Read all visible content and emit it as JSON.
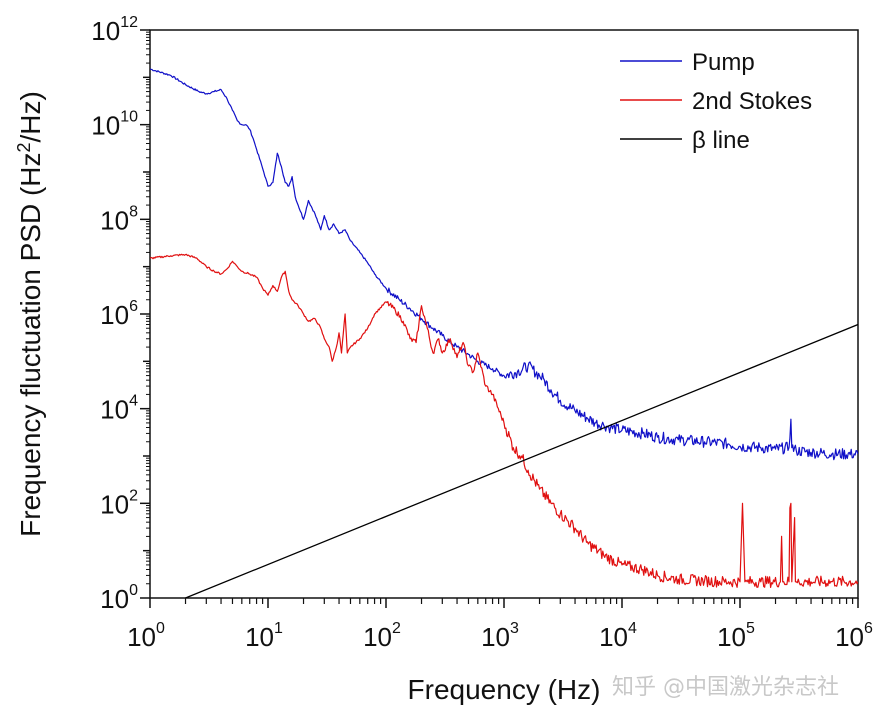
{
  "chart_data": {
    "type": "line",
    "title": "",
    "xlabel": "Frequency (Hz)",
    "ylabel": "Frequency fluctuation PSD (Hz2/Hz)",
    "ylabel_parts": {
      "pre": "Frequency fluctuation PSD (Hz",
      "sup": "2",
      "post": "/Hz)"
    },
    "xscale": "log",
    "yscale": "log",
    "xlim": [
      1,
      1000000
    ],
    "ylim": [
      1,
      1000000000000
    ],
    "x_ticks": [
      {
        "base": "10",
        "exp": "0",
        "value": 1
      },
      {
        "base": "10",
        "exp": "1",
        "value": 10
      },
      {
        "base": "10",
        "exp": "2",
        "value": 100
      },
      {
        "base": "10",
        "exp": "3",
        "value": 1000
      },
      {
        "base": "10",
        "exp": "4",
        "value": 10000
      },
      {
        "base": "10",
        "exp": "5",
        "value": 100000
      },
      {
        "base": "10",
        "exp": "6",
        "value": 1000000
      }
    ],
    "y_ticks": [
      {
        "base": "10",
        "exp": "0",
        "value": 1
      },
      {
        "base": "10",
        "exp": "2",
        "value": 100
      },
      {
        "base": "10",
        "exp": "4",
        "value": 10000
      },
      {
        "base": "10",
        "exp": "6",
        "value": 1000000
      },
      {
        "base": "10",
        "exp": "8",
        "value": 100000000
      },
      {
        "base": "10",
        "exp": "10",
        "value": 10000000000
      },
      {
        "base": "10",
        "exp": "12",
        "value": 1000000000000
      }
    ],
    "grid": false,
    "legend_position": "top-right",
    "series": [
      {
        "name": "Pump",
        "color": "#1010c8",
        "x": [
          1,
          1.5,
          2,
          2.6,
          3,
          3.5,
          4,
          4.5,
          5,
          5.5,
          6,
          6.5,
          7,
          7.5,
          8,
          9,
          10,
          11,
          12,
          13,
          14,
          15,
          16,
          17,
          18,
          20,
          22,
          25,
          28,
          30,
          33,
          36,
          40,
          45,
          50,
          60,
          70,
          80,
          100,
          130,
          160,
          200,
          250,
          300,
          400,
          500,
          600,
          800,
          1000,
          1300,
          1600,
          2000,
          2200,
          2500,
          3000,
          4000,
          5000,
          6000,
          7000,
          8000,
          10000,
          15000,
          20000,
          30000,
          50000,
          80000,
          100000,
          150000,
          200000,
          260000,
          270000,
          275000,
          300000,
          400000,
          600000,
          1000000
        ],
        "y": [
          150000000000.0,
          110000000000.0,
          70000000000.0,
          50000000000.0,
          45000000000.0,
          50000000000.0,
          55000000000.0,
          35000000000.0,
          20000000000.0,
          12000000000.0,
          10000000000.0,
          10000000000.0,
          8000000000.0,
          5000000000.0,
          3000000000.0,
          1200000000.0,
          500000000.0,
          600000000.0,
          2500000000.0,
          1300000000.0,
          600000000.0,
          500000000.0,
          800000000.0,
          300000000.0,
          200000000.0,
          100000000.0,
          250000000.0,
          130000000.0,
          60000000.0,
          120000000.0,
          60000000.0,
          80000000.0,
          50000000.0,
          60000000.0,
          35000000.0,
          20000000.0,
          12000000.0,
          7000000.0,
          3500000.0,
          2000000.0,
          1300000.0,
          800000.0,
          500000.0,
          350000.0,
          200000.0,
          140000.0,
          100000.0,
          70000.0,
          50000.0,
          60000.0,
          80000.0,
          50000.0,
          40000.0,
          25000.0,
          15000.0,
          9000.0,
          6500.0,
          5000.0,
          4500.0,
          4000.0,
          3500.0,
          3000.0,
          2500.0,
          2200.0,
          2000.0,
          1800.0,
          1600.0,
          1500.0,
          1400.0,
          1500.0,
          6000.0,
          1500.0,
          1300.0,
          1200.0,
          1100.0,
          1100.0
        ]
      },
      {
        "name": "2nd Stokes",
        "color": "#e01010",
        "x": [
          1,
          1.5,
          2,
          2.5,
          3,
          3.5,
          4,
          4.5,
          5,
          5.5,
          6,
          7,
          8,
          9,
          10,
          11,
          12,
          13,
          14,
          15,
          16,
          18,
          20,
          22,
          25,
          28,
          30,
          33,
          35,
          38,
          40,
          42,
          45,
          47,
          50,
          60,
          70,
          80,
          100,
          120,
          140,
          160,
          180,
          200,
          220,
          250,
          280,
          300,
          350,
          400,
          450,
          500,
          550,
          600,
          700,
          800,
          1000,
          1200,
          1400,
          1600,
          2000,
          2500,
          3000,
          4000,
          5000,
          7000,
          10000,
          15000,
          20000,
          30000,
          50000,
          80000,
          100000,
          105000,
          110000,
          115000,
          150000,
          220000,
          225000,
          230000,
          260000,
          265000,
          270000,
          275000,
          290000,
          295000,
          300000,
          400000,
          600000,
          1000000
        ],
        "y": [
          15000000.0,
          17000000.0,
          18000000.0,
          15000000.0,
          10000000.0,
          8000000.0,
          7000000.0,
          9000000.0,
          13000000.0,
          10000000.0,
          8000000.0,
          7000000.0,
          6000000.0,
          3500000.0,
          2500000.0,
          4000000.0,
          3000000.0,
          6000000.0,
          8000000.0,
          3000000.0,
          2000000.0,
          1500000.0,
          1000000.0,
          700000.0,
          800000.0,
          500000.0,
          300000.0,
          200000.0,
          100000.0,
          200000.0,
          400000.0,
          150000.0,
          1000000.0,
          150000.0,
          200000.0,
          300000.0,
          500000.0,
          1000000.0,
          1800000.0,
          1200000.0,
          700000.0,
          300000.0,
          250000.0,
          1500000.0,
          600000.0,
          150000.0,
          300000.0,
          150000.0,
          300000.0,
          120000.0,
          250000.0,
          80000.0,
          60000.0,
          150000.0,
          30000.0,
          20000.0,
          5000.0,
          1500.0,
          1000.0,
          500.0,
          200.0,
          100.0,
          60,
          30,
          15,
          8,
          5,
          4,
          3,
          2.5,
          2.3,
          2.2,
          2.2,
          100,
          2.2,
          2.2,
          2.2,
          2.2,
          20,
          2.2,
          2.2,
          80,
          100,
          2.2,
          50,
          2.2,
          2.2,
          2.2,
          2.2,
          2.2
        ]
      },
      {
        "name": "β line",
        "color": "#000000",
        "x": [
          2,
          1000000
        ],
        "y": [
          1,
          600000
        ]
      }
    ]
  },
  "legend": {
    "items": [
      {
        "label": "Pump",
        "color": "#1010c8"
      },
      {
        "label": "2nd Stokes",
        "color": "#e01010"
      },
      {
        "label": "β line",
        "color": "#000000"
      }
    ]
  },
  "watermark": "知乎 @中国激光杂志社"
}
